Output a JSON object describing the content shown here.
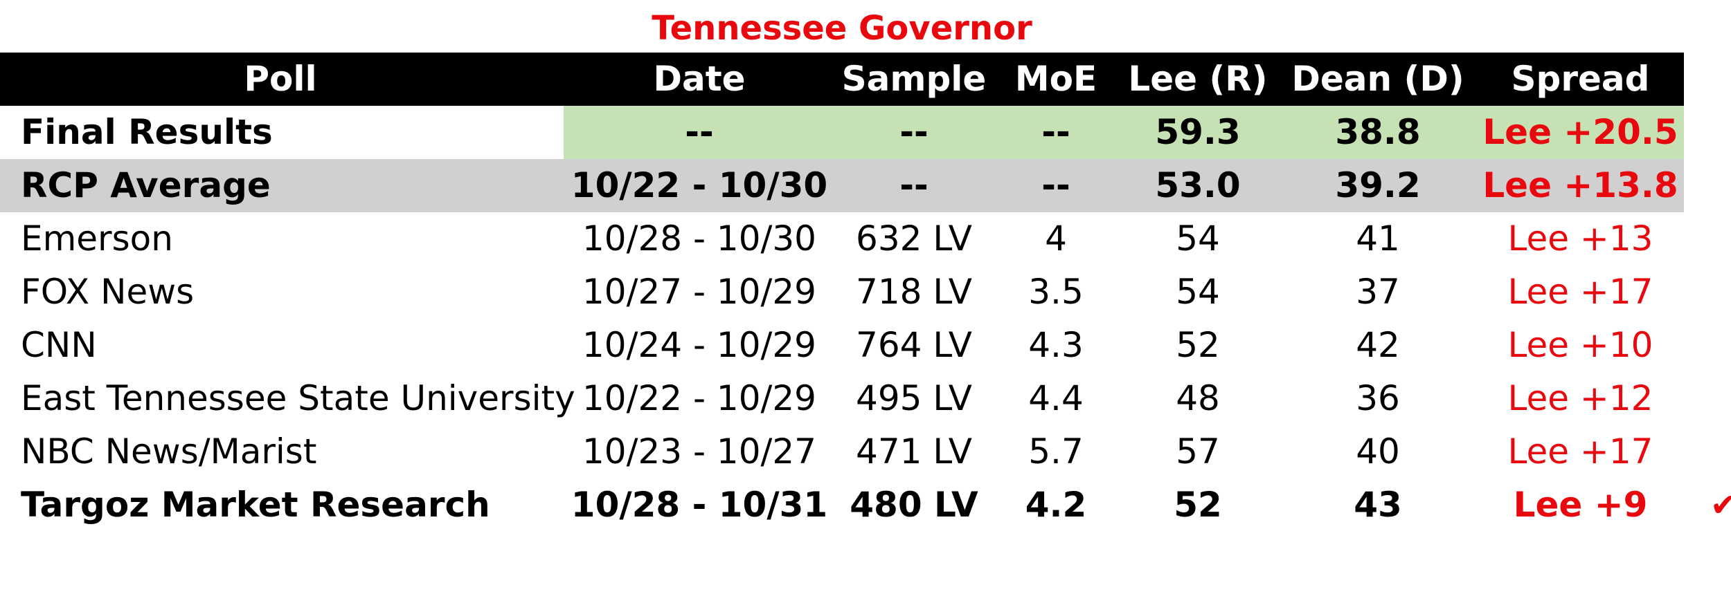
{
  "title": "Tennessee Governor",
  "colors": {
    "title": "#e8090f",
    "header_bg": "#000000",
    "header_text": "#ffffff",
    "final_results_bg": "#c6e2b5",
    "rcp_average_bg": "#d0d0d0",
    "spread_text": "#e8090f",
    "text": "#000000"
  },
  "chart_data": {
    "type": "table",
    "title": "Tennessee Governor",
    "columns": [
      "Poll",
      "Date",
      "Sample",
      "MoE",
      "Lee (R)",
      "Dean (D)",
      "Spread"
    ],
    "rows": [
      {
        "poll": "Final Results",
        "date": "--",
        "sample": "--",
        "moe": "--",
        "lee": "59.3",
        "dean": "38.8",
        "spread": "Lee +20.5",
        "style": "final"
      },
      {
        "poll": "RCP Average",
        "date": "10/22 - 10/30",
        "sample": "--",
        "moe": "--",
        "lee": "53.0",
        "dean": "39.2",
        "spread": "Lee +13.8",
        "style": "average"
      },
      {
        "poll": "Emerson",
        "date": "10/28 - 10/30",
        "sample": "632 LV",
        "moe": "4",
        "lee": "54",
        "dean": "41",
        "spread": "Lee +13",
        "style": "normal"
      },
      {
        "poll": "FOX News",
        "date": "10/27 - 10/29",
        "sample": "718 LV",
        "moe": "3.5",
        "lee": "54",
        "dean": "37",
        "spread": "Lee +17",
        "style": "normal"
      },
      {
        "poll": "CNN",
        "date": "10/24 - 10/29",
        "sample": "764 LV",
        "moe": "4.3",
        "lee": "52",
        "dean": "42",
        "spread": "Lee +10",
        "style": "normal"
      },
      {
        "poll": "East Tennessee State University",
        "date": "10/22 - 10/29",
        "sample": "495 LV",
        "moe": "4.4",
        "lee": "48",
        "dean": "36",
        "spread": "Lee +12",
        "style": "normal"
      },
      {
        "poll": "NBC News/Marist",
        "date": "10/23 - 10/27",
        "sample": "471 LV",
        "moe": "5.7",
        "lee": "57",
        "dean": "40",
        "spread": "Lee +17",
        "style": "normal"
      },
      {
        "poll": "Targoz Market Research",
        "date": "10/28 - 10/31",
        "sample": "480 LV",
        "moe": "4.2",
        "lee": "52",
        "dean": "43",
        "spread": "Lee +9",
        "style": "bold",
        "checkmark": true
      }
    ]
  },
  "icons": {
    "checkmark": "check-icon"
  }
}
